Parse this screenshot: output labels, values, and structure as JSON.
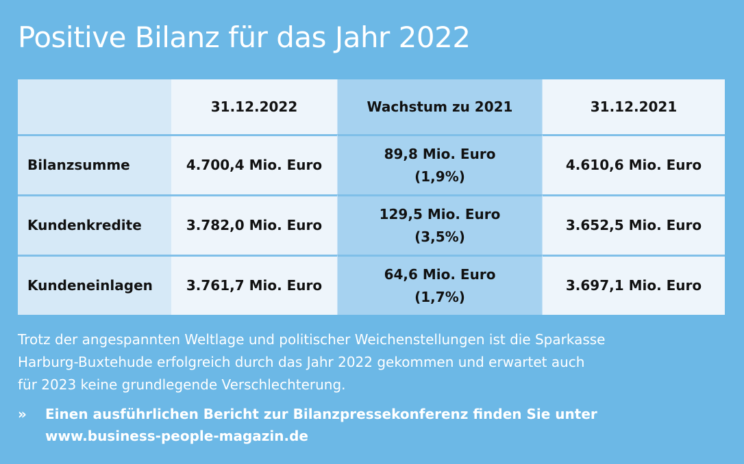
{
  "title": "Positive Bilanz für das Jahr 2022",
  "table": {
    "header": [
      "",
      "31.12.2022",
      "Wachstum zu 2021",
      "31.12.2021"
    ],
    "rows": [
      {
        "label": "Bilanzsumme",
        "v2022": "4.700,4 Mio. Euro",
        "growth_abs": "89,8 Mio. Euro",
        "growth_pct": "(1,9%)",
        "v2021": "4.610,6 Mio. Euro"
      },
      {
        "label": "Kundenkredite",
        "v2022": "3.782,0 Mio. Euro",
        "growth_abs": "129,5 Mio. Euro",
        "growth_pct": "(3,5%)",
        "v2021": "3.652,5 Mio. Euro"
      },
      {
        "label": "Kundeneinlagen",
        "v2022": "3.761,7 Mio. Euro",
        "growth_abs": "64,6 Mio. Euro",
        "growth_pct": "(1,7%)",
        "v2021": "3.697,1 Mio. Euro"
      }
    ]
  },
  "body_text": {
    "line1": "Trotz der angespannten Weltlage und politischer Weichenstellungen ist die Sparkasse",
    "line2": "Harburg-Buxtehude erfolgreich durch das Jahr 2022 gekommen und erwartet auch",
    "line3": "für 2023 keine grundlegende Verschlechterung."
  },
  "more": {
    "arrow": "»",
    "line1": "Einen ausführlichen Bericht zur Bilanzpressekonferenz finden Sie unter",
    "line2": "www.business-people-magazin.de"
  },
  "colors": {
    "background": "#6cb8e6",
    "label_column": "#d6e9f7",
    "value_column": "#eef5fb",
    "growth_column": "#a6d2f0"
  }
}
